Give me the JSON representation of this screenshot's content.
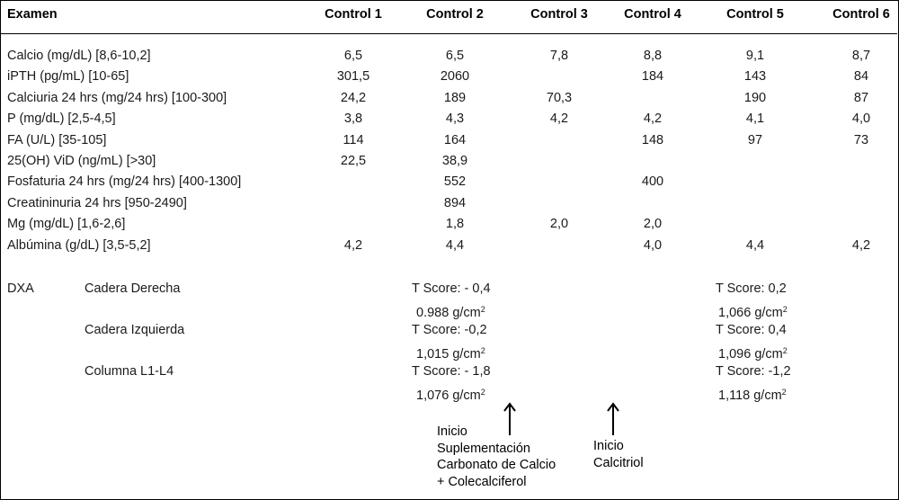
{
  "header": {
    "examen": "Examen",
    "controls": [
      "Control 1",
      "Control 2",
      "Control 3",
      "Control 4",
      "Control 5",
      "Control 6"
    ]
  },
  "rows": [
    {
      "label": "Calcio (mg/dL) [8,6-10,2]",
      "values": [
        "6,5",
        "6,5",
        "7,8",
        "8,8",
        "9,1",
        "8,7"
      ]
    },
    {
      "label": "iPTH (pg/mL) [10-65]",
      "values": [
        "301,5",
        "2060",
        "",
        "184",
        "143",
        "84"
      ]
    },
    {
      "label": "Calciuria 24 hrs (mg/24 hrs) [100-300]",
      "values": [
        "24,2",
        "189",
        "70,3",
        "",
        "190",
        "87"
      ]
    },
    {
      "label": "P (mg/dL) [2,5-4,5]",
      "values": [
        "3,8",
        "4,3",
        "4,2",
        "4,2",
        "4,1",
        "4,0"
      ]
    },
    {
      "label": "FA (U/L) [35-105]",
      "values": [
        "114",
        "164",
        "",
        "148",
        "97",
        "73"
      ]
    },
    {
      "label": "25(OH) ViD (ng/mL) [>30]",
      "values": [
        "22,5",
        "38,9",
        "",
        "",
        "",
        ""
      ]
    },
    {
      "label": "Fosfaturia 24 hrs (mg/24 hrs) [400-1300]",
      "values": [
        "",
        "552",
        "",
        "400",
        "",
        ""
      ]
    },
    {
      "label": "Creatininuria 24 hrs [950-2490]",
      "values": [
        "",
        "894",
        "",
        "",
        "",
        ""
      ]
    },
    {
      "label": "Mg (mg/dL) [1,6-2,6]",
      "values": [
        "",
        "1,8",
        "2,0",
        "2,0",
        "",
        ""
      ]
    },
    {
      "label": "Albúmina (g/dL) [3,5-5,2]",
      "values": [
        "4,2",
        "4,4",
        "",
        "4,0",
        "4,4",
        "4,2"
      ]
    }
  ],
  "dxa": {
    "label": "DXA",
    "sites": [
      {
        "name": "Cadera Derecha",
        "c2_t": "T Score: - 0,4",
        "c2_d": "0.988 g/cm",
        "c5_t": "T Score:  0,2",
        "c5_d": "1,066 g/cm"
      },
      {
        "name": "Cadera Izquierda",
        "c2_t": "T Score: -0,2",
        "c2_d": "1,015 g/cm",
        "c5_t": "T Score: 0,4",
        "c5_d": "1,096 g/cm"
      },
      {
        "name": "Columna L1-L4",
        "c2_t": "T Score: - 1,8",
        "c2_d": "1,076 g/cm",
        "c5_t": "T Score: -1,2",
        "c5_d": "1,118 g/cm"
      }
    ],
    "superscript": "2"
  },
  "notes": {
    "note1": [
      "Inicio",
      "Suplementación",
      "Carbonato de Calcio",
      "+ Colecalciferol"
    ],
    "note2": [
      "Inicio",
      "Calcitriol"
    ]
  }
}
